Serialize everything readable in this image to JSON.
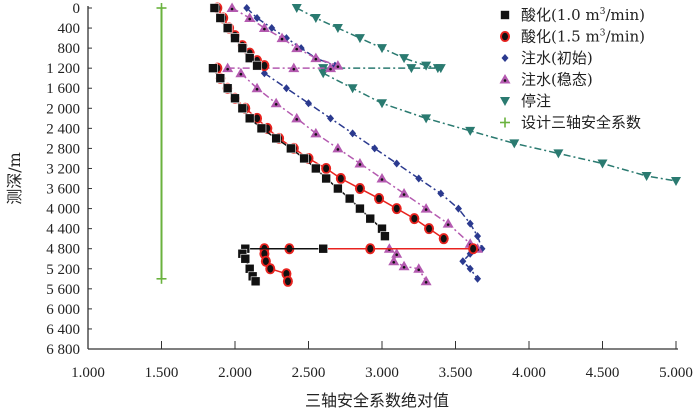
{
  "chart_data": {
    "type": "line",
    "title": "",
    "xlabel": "三轴安全系数绝对值",
    "ylabel": "测深/m",
    "xlim": [
      1.0,
      5.0
    ],
    "ylim": [
      0,
      6800
    ],
    "y_inverted": true,
    "x_ticks": [
      "1.000",
      "1.500",
      "2.000",
      "2.500",
      "3.000",
      "3.500",
      "4.000",
      "4.500",
      "5.000"
    ],
    "y_ticks": [
      "0",
      "400",
      "800",
      "1 200",
      "1 600",
      "2 000",
      "2 400",
      "2 800",
      "3 200",
      "3 600",
      "4 000",
      "4 400",
      "4 800",
      "5 200",
      "5 600",
      "6 000",
      "6 400",
      "6 800"
    ],
    "grid": false,
    "legend_position": "top-right",
    "series": [
      {
        "name": "酸化(1.0 m³/min)",
        "legend_main": "酸化(1.0 m",
        "legend_sup": "3",
        "legend_tail": "/min)",
        "color": "#111111",
        "marker": "square",
        "line": "solid",
        "segments": [
          [
            [
              1.86,
              0
            ],
            [
              1.9,
              200
            ],
            [
              1.95,
              400
            ],
            [
              2.0,
              600
            ],
            [
              2.05,
              800
            ],
            [
              2.1,
              1000
            ],
            [
              2.15,
              1150
            ]
          ],
          [
            [
              1.85,
              1200
            ],
            [
              1.9,
              1400
            ],
            [
              1.95,
              1600
            ],
            [
              2.0,
              1800
            ],
            [
              2.05,
              2000
            ],
            [
              2.1,
              2200
            ],
            [
              2.18,
              2400
            ],
            [
              2.28,
              2600
            ],
            [
              2.38,
              2800
            ],
            [
              2.47,
              3000
            ],
            [
              2.55,
              3200
            ],
            [
              2.62,
              3400
            ],
            [
              2.7,
              3600
            ],
            [
              2.78,
              3800
            ],
            [
              2.85,
              4000
            ],
            [
              2.92,
              4200
            ],
            [
              3.0,
              4400
            ],
            [
              3.02,
              4550
            ]
          ],
          [
            [
              2.07,
              4800
            ],
            [
              2.6,
              4800
            ]
          ],
          [
            [
              2.05,
              4900
            ],
            [
              2.07,
              5000
            ],
            [
              2.1,
              5200
            ],
            [
              2.12,
              5350
            ],
            [
              2.14,
              5450
            ]
          ]
        ]
      },
      {
        "name": "酸化(1.5 m³/min)",
        "legend_main": "酸化(1.5 m",
        "legend_sup": "3",
        "legend_tail": "/min)",
        "color": "#e8231f",
        "marker": "circle",
        "line": "solid",
        "segments": [
          [
            [
              1.88,
              0
            ],
            [
              1.92,
              200
            ],
            [
              1.96,
              400
            ],
            [
              2.0,
              550
            ],
            [
              2.05,
              750
            ],
            [
              2.1,
              900
            ],
            [
              2.15,
              1050
            ],
            [
              2.2,
              1150
            ]
          ],
          [
            [
              1.88,
              1200
            ],
            [
              1.9,
              1400
            ],
            [
              1.95,
              1600
            ],
            [
              2.0,
              1800
            ],
            [
              2.07,
              2000
            ],
            [
              2.15,
              2200
            ],
            [
              2.22,
              2400
            ],
            [
              2.3,
              2600
            ],
            [
              2.4,
              2800
            ],
            [
              2.5,
              3000
            ],
            [
              2.62,
              3200
            ],
            [
              2.72,
              3400
            ],
            [
              2.85,
              3600
            ],
            [
              2.98,
              3800
            ],
            [
              3.1,
              4000
            ],
            [
              3.22,
              4200
            ],
            [
              3.32,
              4400
            ],
            [
              3.42,
              4600
            ]
          ],
          [
            [
              2.2,
              4800
            ],
            [
              2.37,
              4800
            ],
            [
              2.92,
              4800
            ],
            [
              3.62,
              4800
            ]
          ],
          [
            [
              2.2,
              4900
            ],
            [
              2.21,
              5050
            ],
            [
              2.24,
              5200
            ],
            [
              2.35,
              5300
            ],
            [
              2.36,
              5450
            ]
          ]
        ]
      },
      {
        "name": "注水(初始)",
        "legend_main": "注水(初始)",
        "color": "#2b3a8f",
        "marker": "diamond",
        "line": "dashdot",
        "segments": [
          [
            [
              2.08,
              0
            ],
            [
              2.15,
              200
            ],
            [
              2.25,
              400
            ],
            [
              2.35,
              600
            ],
            [
              2.45,
              800
            ],
            [
              2.55,
              1000
            ],
            [
              2.68,
              1150
            ]
          ],
          [
            [
              2.2,
              1300
            ],
            [
              2.35,
              1600
            ],
            [
              2.5,
              1900
            ],
            [
              2.65,
              2200
            ],
            [
              2.8,
              2500
            ],
            [
              2.95,
              2800
            ],
            [
              3.1,
              3100
            ],
            [
              3.25,
              3400
            ],
            [
              3.4,
              3700
            ],
            [
              3.52,
              4000
            ],
            [
              3.6,
              4300
            ],
            [
              3.65,
              4550
            ],
            [
              3.68,
              4800
            ]
          ],
          [
            [
              3.6,
              4900
            ],
            [
              3.55,
              5050
            ],
            [
              3.6,
              5200
            ],
            [
              3.65,
              5400
            ]
          ]
        ]
      },
      {
        "name": "注水(稳态)",
        "legend_main": "注水(稳态)",
        "color": "#b45ab0",
        "marker": "triangle-up",
        "line": "dashdot",
        "segments": [
          [
            [
              1.98,
              0
            ],
            [
              2.1,
              200
            ],
            [
              2.2,
              400
            ],
            [
              2.32,
              600
            ],
            [
              2.42,
              800
            ],
            [
              2.55,
              1000
            ],
            [
              2.7,
              1150
            ]
          ],
          [
            [
              1.95,
              1200
            ],
            [
              2.4,
              1200
            ],
            [
              2.65,
              1200
            ]
          ],
          [
            [
              2.04,
              1300
            ],
            [
              2.15,
              1600
            ],
            [
              2.28,
              1900
            ],
            [
              2.42,
              2200
            ],
            [
              2.55,
              2500
            ],
            [
              2.7,
              2800
            ],
            [
              2.85,
              3100
            ],
            [
              3.0,
              3400
            ],
            [
              3.15,
              3700
            ],
            [
              3.3,
              4000
            ],
            [
              3.45,
              4300
            ],
            [
              3.6,
              4700
            ]
          ],
          [
            [
              3.05,
              4800
            ],
            [
              3.65,
              4800
            ]
          ],
          [
            [
              3.1,
              4900
            ],
            [
              3.08,
              5050
            ],
            [
              3.15,
              5150
            ],
            [
              3.25,
              5200
            ],
            [
              3.3,
              5450
            ]
          ]
        ]
      },
      {
        "name": "停注",
        "legend_main": "停注",
        "color": "#2a7a70",
        "marker": "triangle-down",
        "line": "dashdot",
        "segments": [
          [
            [
              2.42,
              0
            ],
            [
              2.55,
              200
            ],
            [
              2.7,
              400
            ],
            [
              2.85,
              600
            ],
            [
              3.0,
              800
            ],
            [
              3.15,
              1000
            ],
            [
              3.3,
              1150
            ],
            [
              3.38,
              1200
            ]
          ],
          [
            [
              2.6,
              1200
            ],
            [
              3.2,
              1200
            ],
            [
              3.4,
              1200
            ]
          ],
          [
            [
              2.6,
              1300
            ],
            [
              2.8,
              1600
            ],
            [
              3.0,
              1900
            ],
            [
              3.3,
              2200
            ],
            [
              3.6,
              2450
            ],
            [
              3.9,
              2700
            ],
            [
              4.2,
              2900
            ],
            [
              4.5,
              3100
            ],
            [
              4.8,
              3350
            ],
            [
              5.0,
              3450
            ]
          ]
        ]
      },
      {
        "name": "设计三轴安全系数",
        "legend_main": "设计三轴安全系数",
        "color": "#6ab23e",
        "marker": "plus",
        "line": "solid",
        "segments": [
          [
            [
              1.5,
              0
            ],
            [
              1.5,
              5400
            ]
          ]
        ]
      }
    ]
  }
}
